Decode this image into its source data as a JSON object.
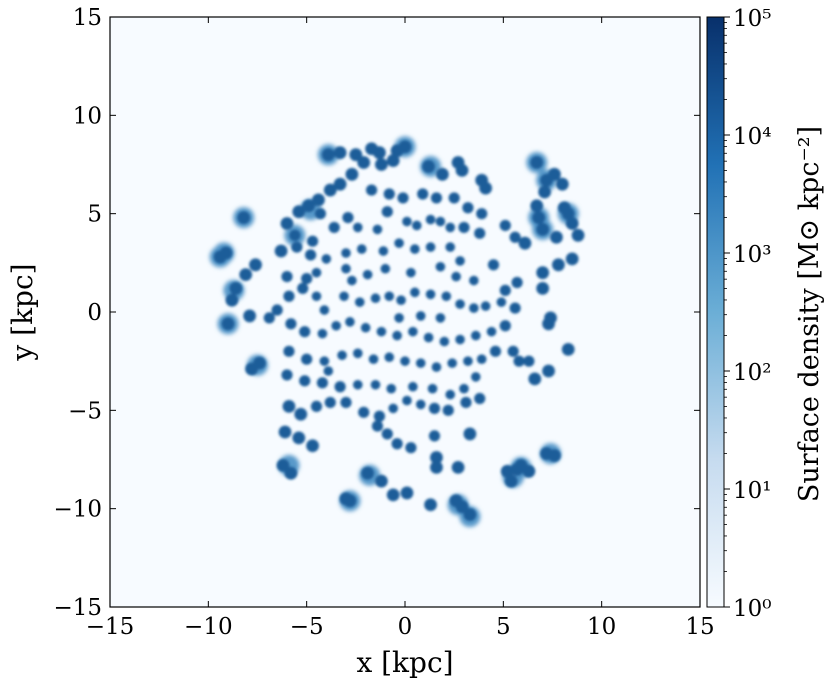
{
  "chart_data": {
    "type": "scatter",
    "xlabel": "x [kpc]",
    "ylabel": "y [kpc]",
    "xlim": [
      -15,
      15
    ],
    "ylim": [
      -15,
      15
    ],
    "x_ticks": [
      -15,
      -10,
      -5,
      0,
      5,
      10,
      15
    ],
    "y_ticks": [
      -15,
      -10,
      -5,
      0,
      5,
      10,
      15
    ],
    "x_tick_labels": [
      "−15",
      "−10",
      "−5",
      "0",
      "5",
      "10",
      "15"
    ],
    "y_tick_labels": [
      "−15",
      "−10",
      "−5",
      "0",
      "5",
      "10",
      "15"
    ],
    "grid": false,
    "colorscale": "blues",
    "colors": {
      "background": "#f7fbff",
      "low": "#f7fbff",
      "mid": "#6baed6",
      "high": "#08306b",
      "cluster": "#1f5d99",
      "cluster_outer": "#4f93c7"
    },
    "colorbar": {
      "label": "Surface density [M⊙ kpc⁻²]",
      "scale": "log",
      "range": [
        1,
        100000
      ],
      "ticks": [
        1,
        10,
        100,
        1000,
        10000,
        100000
      ],
      "tick_labels": [
        "10⁰",
        "10¹",
        "10²",
        "10³",
        "10⁴",
        "10⁵"
      ]
    },
    "clusters": [
      [
        -1.7,
        8.3
      ],
      [
        -1.3,
        8.1
      ],
      [
        -0.4,
        8.2
      ],
      [
        -3.9,
        8.0
      ],
      [
        -3.3,
        8.1
      ],
      [
        -2.5,
        8.0
      ],
      [
        -2.1,
        7.6
      ],
      [
        -1.2,
        7.5
      ],
      [
        -0.6,
        7.7
      ],
      [
        0,
        8.4
      ],
      [
        1.2,
        7.4
      ],
      [
        1.9,
        7.0
      ],
      [
        2.7,
        7.6
      ],
      [
        2.9,
        7.2
      ],
      [
        3.9,
        6.7
      ],
      [
        4.1,
        6.3
      ],
      [
        -2.7,
        7.0
      ],
      [
        -3.3,
        6.5
      ],
      [
        -3.8,
        6.2
      ],
      [
        -4.4,
        5.7
      ],
      [
        -4.9,
        5.4
      ],
      [
        -5.4,
        5.1
      ],
      [
        -4.3,
        5.0
      ],
      [
        -1.7,
        6.2
      ],
      [
        -0.8,
        6.0
      ],
      [
        -0.1,
        5.8
      ],
      [
        0.9,
        6.0
      ],
      [
        1.6,
        5.8
      ],
      [
        2.5,
        5.8
      ],
      [
        3.2,
        5.3
      ],
      [
        3.9,
        5.0
      ],
      [
        -6.0,
        4.5
      ],
      [
        -5.6,
        3.9
      ],
      [
        -6.3,
        3.1
      ],
      [
        -5.5,
        3.3
      ],
      [
        -4.7,
        3.6
      ],
      [
        -3.6,
        4.3
      ],
      [
        -2.9,
        4.8
      ],
      [
        -2.4,
        4.3
      ],
      [
        -1.4,
        4.2
      ],
      [
        -0.9,
        5.1
      ],
      [
        0.1,
        4.6
      ],
      [
        0.6,
        4.4
      ],
      [
        1.3,
        4.7
      ],
      [
        1.8,
        4.6
      ],
      [
        2.3,
        4.3
      ],
      [
        3.0,
        4.3
      ],
      [
        3.8,
        4.0
      ],
      [
        -4.8,
        2.9
      ],
      [
        -4.0,
        2.7
      ],
      [
        -3.0,
        3.0
      ],
      [
        -2.2,
        3.2
      ],
      [
        -1.1,
        3.1
      ],
      [
        -0.3,
        3.5
      ],
      [
        0.5,
        3.2
      ],
      [
        1.3,
        3.3
      ],
      [
        2.3,
        3.3
      ],
      [
        2.8,
        2.6
      ],
      [
        4.5,
        2.4
      ],
      [
        5.1,
        4.4
      ],
      [
        5.6,
        3.8
      ],
      [
        6.1,
        3.5
      ],
      [
        6.7,
        7.6
      ],
      [
        7.2,
        6.7
      ],
      [
        7.6,
        7.0
      ],
      [
        8.0,
        6.5
      ],
      [
        7.1,
        6.1
      ],
      [
        6.7,
        5.4
      ],
      [
        6.8,
        4.8
      ],
      [
        7.0,
        4.2
      ],
      [
        7.7,
        3.8
      ],
      [
        8.1,
        5.3
      ],
      [
        8.3,
        5.0
      ],
      [
        8.5,
        4.5
      ],
      [
        8.8,
        3.9
      ],
      [
        8.5,
        2.7
      ],
      [
        7.8,
        2.4
      ],
      [
        7.0,
        2.0
      ],
      [
        5.7,
        1.5
      ],
      [
        5.1,
        1.1
      ],
      [
        7.0,
        1.2
      ],
      [
        -9.1,
        3.0
      ],
      [
        -9.4,
        2.8
      ],
      [
        -8.2,
        4.8
      ],
      [
        -7.6,
        2.4
      ],
      [
        -8.1,
        1.9
      ],
      [
        -8.6,
        1.2
      ],
      [
        -8.8,
        0.6
      ],
      [
        -9.0,
        -0.6
      ],
      [
        -7.4,
        -2.6
      ],
      [
        -7.8,
        -2.9
      ],
      [
        -6.5,
        0.1
      ],
      [
        -6.0,
        1.8
      ],
      [
        -5.9,
        0.8
      ],
      [
        -5.0,
        1.7
      ],
      [
        -5.2,
        1.2
      ],
      [
        -4.5,
        2.0
      ],
      [
        -4.5,
        0.8
      ],
      [
        -4.1,
        0.1
      ],
      [
        -3.1,
        0.8
      ],
      [
        -2.3,
        0.5
      ],
      [
        -1.5,
        0.7
      ],
      [
        -0.8,
        0.8
      ],
      [
        -0.2,
        0.6
      ],
      [
        0.5,
        1.0
      ],
      [
        1.3,
        0.9
      ],
      [
        2.1,
        0.8
      ],
      [
        2.8,
        0.4
      ],
      [
        3.5,
        0.2
      ],
      [
        4.1,
        0.3
      ],
      [
        4.9,
        0.5
      ],
      [
        5.6,
        0.2
      ],
      [
        -5.8,
        -0.6
      ],
      [
        -5.1,
        -1.0
      ],
      [
        -4.2,
        -1.1
      ],
      [
        -3.5,
        -0.7
      ],
      [
        -2.8,
        -0.5
      ],
      [
        -2.0,
        -0.8
      ],
      [
        -1.2,
        -1.0
      ],
      [
        -0.4,
        -1.2
      ],
      [
        0.4,
        -1.0
      ],
      [
        1.2,
        -1.3
      ],
      [
        2.0,
        -1.5
      ],
      [
        2.8,
        -1.4
      ],
      [
        3.6,
        -1.2
      ],
      [
        4.4,
        -1.0
      ],
      [
        5.1,
        -0.7
      ],
      [
        -5.9,
        -2.0
      ],
      [
        -5.0,
        -2.4
      ],
      [
        -4.1,
        -2.5
      ],
      [
        -3.2,
        -2.2
      ],
      [
        -2.4,
        -2.1
      ],
      [
        -1.6,
        -2.4
      ],
      [
        -0.8,
        -2.3
      ],
      [
        0,
        -2.5
      ],
      [
        0.8,
        -2.6
      ],
      [
        1.6,
        -2.8
      ],
      [
        2.4,
        -2.6
      ],
      [
        3.2,
        -2.5
      ],
      [
        3.9,
        -2.4
      ],
      [
        4.6,
        -2.0
      ],
      [
        5.5,
        -2.0
      ],
      [
        -6.0,
        -3.2
      ],
      [
        -5.1,
        -3.5
      ],
      [
        -4.2,
        -3.6
      ],
      [
        -3.3,
        -3.8
      ],
      [
        -2.4,
        -3.7
      ],
      [
        -1.5,
        -3.7
      ],
      [
        -0.7,
        -3.9
      ],
      [
        0.4,
        -3.8
      ],
      [
        1.4,
        -3.9
      ],
      [
        2.3,
        -4.2
      ],
      [
        3.0,
        -3.9
      ],
      [
        3.6,
        -3.3
      ],
      [
        -5.9,
        -4.8
      ],
      [
        -5.3,
        -5.2
      ],
      [
        -4.5,
        -4.8
      ],
      [
        -3.8,
        -4.6
      ],
      [
        -3.0,
        -4.6
      ],
      [
        -2.1,
        -5.1
      ],
      [
        -1.3,
        -5.3
      ],
      [
        -0.6,
        -4.9
      ],
      [
        0.1,
        -4.5
      ],
      [
        0.8,
        -4.7
      ],
      [
        1.5,
        -4.9
      ],
      [
        2.2,
        -5.0
      ],
      [
        3.1,
        -4.6
      ],
      [
        3.8,
        -4.4
      ],
      [
        -6.1,
        -6.1
      ],
      [
        -5.4,
        -6.4
      ],
      [
        -4.7,
        -6.8
      ],
      [
        -1.4,
        -5.8
      ],
      [
        -0.9,
        -6.2
      ],
      [
        -0.4,
        -6.7
      ],
      [
        0.3,
        -6.9
      ],
      [
        1.5,
        -6.3
      ],
      [
        1.6,
        -7.4
      ],
      [
        -6.2,
        -7.8
      ],
      [
        -5.8,
        -8.2
      ],
      [
        -1.9,
        -8.2
      ],
      [
        -1.2,
        -8.6
      ],
      [
        -0.6,
        -9.3
      ],
      [
        0.1,
        -9.2
      ],
      [
        -2.8,
        -9.6
      ],
      [
        -3.0,
        -9.5
      ],
      [
        1.3,
        -9.8
      ],
      [
        1.6,
        -7.9
      ],
      [
        2.6,
        -9.6
      ],
      [
        2.9,
        -9.9
      ],
      [
        3.3,
        -10.3
      ],
      [
        2.7,
        -7.9
      ],
      [
        5.2,
        -8.1
      ],
      [
        5.7,
        -8.0
      ],
      [
        5.9,
        -7.8
      ],
      [
        5.4,
        -8.6
      ],
      [
        6.3,
        -8.1
      ],
      [
        7.2,
        -7.2
      ],
      [
        7.6,
        -7.3
      ],
      [
        7.3,
        -3.0
      ],
      [
        6.6,
        -3.4
      ],
      [
        6.3,
        -2.5
      ],
      [
        5.8,
        -2.5
      ],
      [
        7.3,
        -0.6
      ],
      [
        8.3,
        -1.9
      ],
      [
        7.4,
        -0.3
      ],
      [
        -7.9,
        -0.2
      ],
      [
        -6.9,
        -0.3
      ],
      [
        -1.0,
        2.2
      ],
      [
        0.3,
        2.0
      ],
      [
        -0.3,
        -0.3
      ],
      [
        1.8,
        -0.3
      ],
      [
        2.6,
        1.8
      ],
      [
        3.5,
        1.6
      ],
      [
        -2.7,
        1.6
      ],
      [
        -1.9,
        1.9
      ],
      [
        3.3,
        -6.2
      ],
      [
        -3.9,
        -3.0
      ],
      [
        1.8,
        2.3
      ],
      [
        0.8,
        -0.2
      ],
      [
        -3.0,
        2.2
      ]
    ],
    "diffuse_clusters": [
      [
        6.7,
        7.6
      ],
      [
        7.2,
        6.7
      ],
      [
        6.8,
        4.8
      ],
      [
        7.0,
        4.2
      ],
      [
        8.3,
        5.0
      ],
      [
        -9.2,
        3.0
      ],
      [
        -9.4,
        2.8
      ],
      [
        -8.2,
        4.8
      ],
      [
        -8.7,
        1.1
      ],
      [
        -9.0,
        -0.6
      ],
      [
        -7.5,
        -2.7
      ],
      [
        -5.9,
        -7.8
      ],
      [
        -2.8,
        -9.6
      ],
      [
        -1.8,
        -8.3
      ],
      [
        2.7,
        -9.8
      ],
      [
        3.3,
        -10.4
      ],
      [
        5.5,
        -8.4
      ],
      [
        5.9,
        -7.9
      ],
      [
        7.4,
        -7.2
      ],
      [
        0,
        8.4
      ],
      [
        1.3,
        7.4
      ],
      [
        -3.9,
        8.0
      ],
      [
        -4.8,
        5.2
      ],
      [
        -5.6,
        3.9
      ]
    ]
  }
}
